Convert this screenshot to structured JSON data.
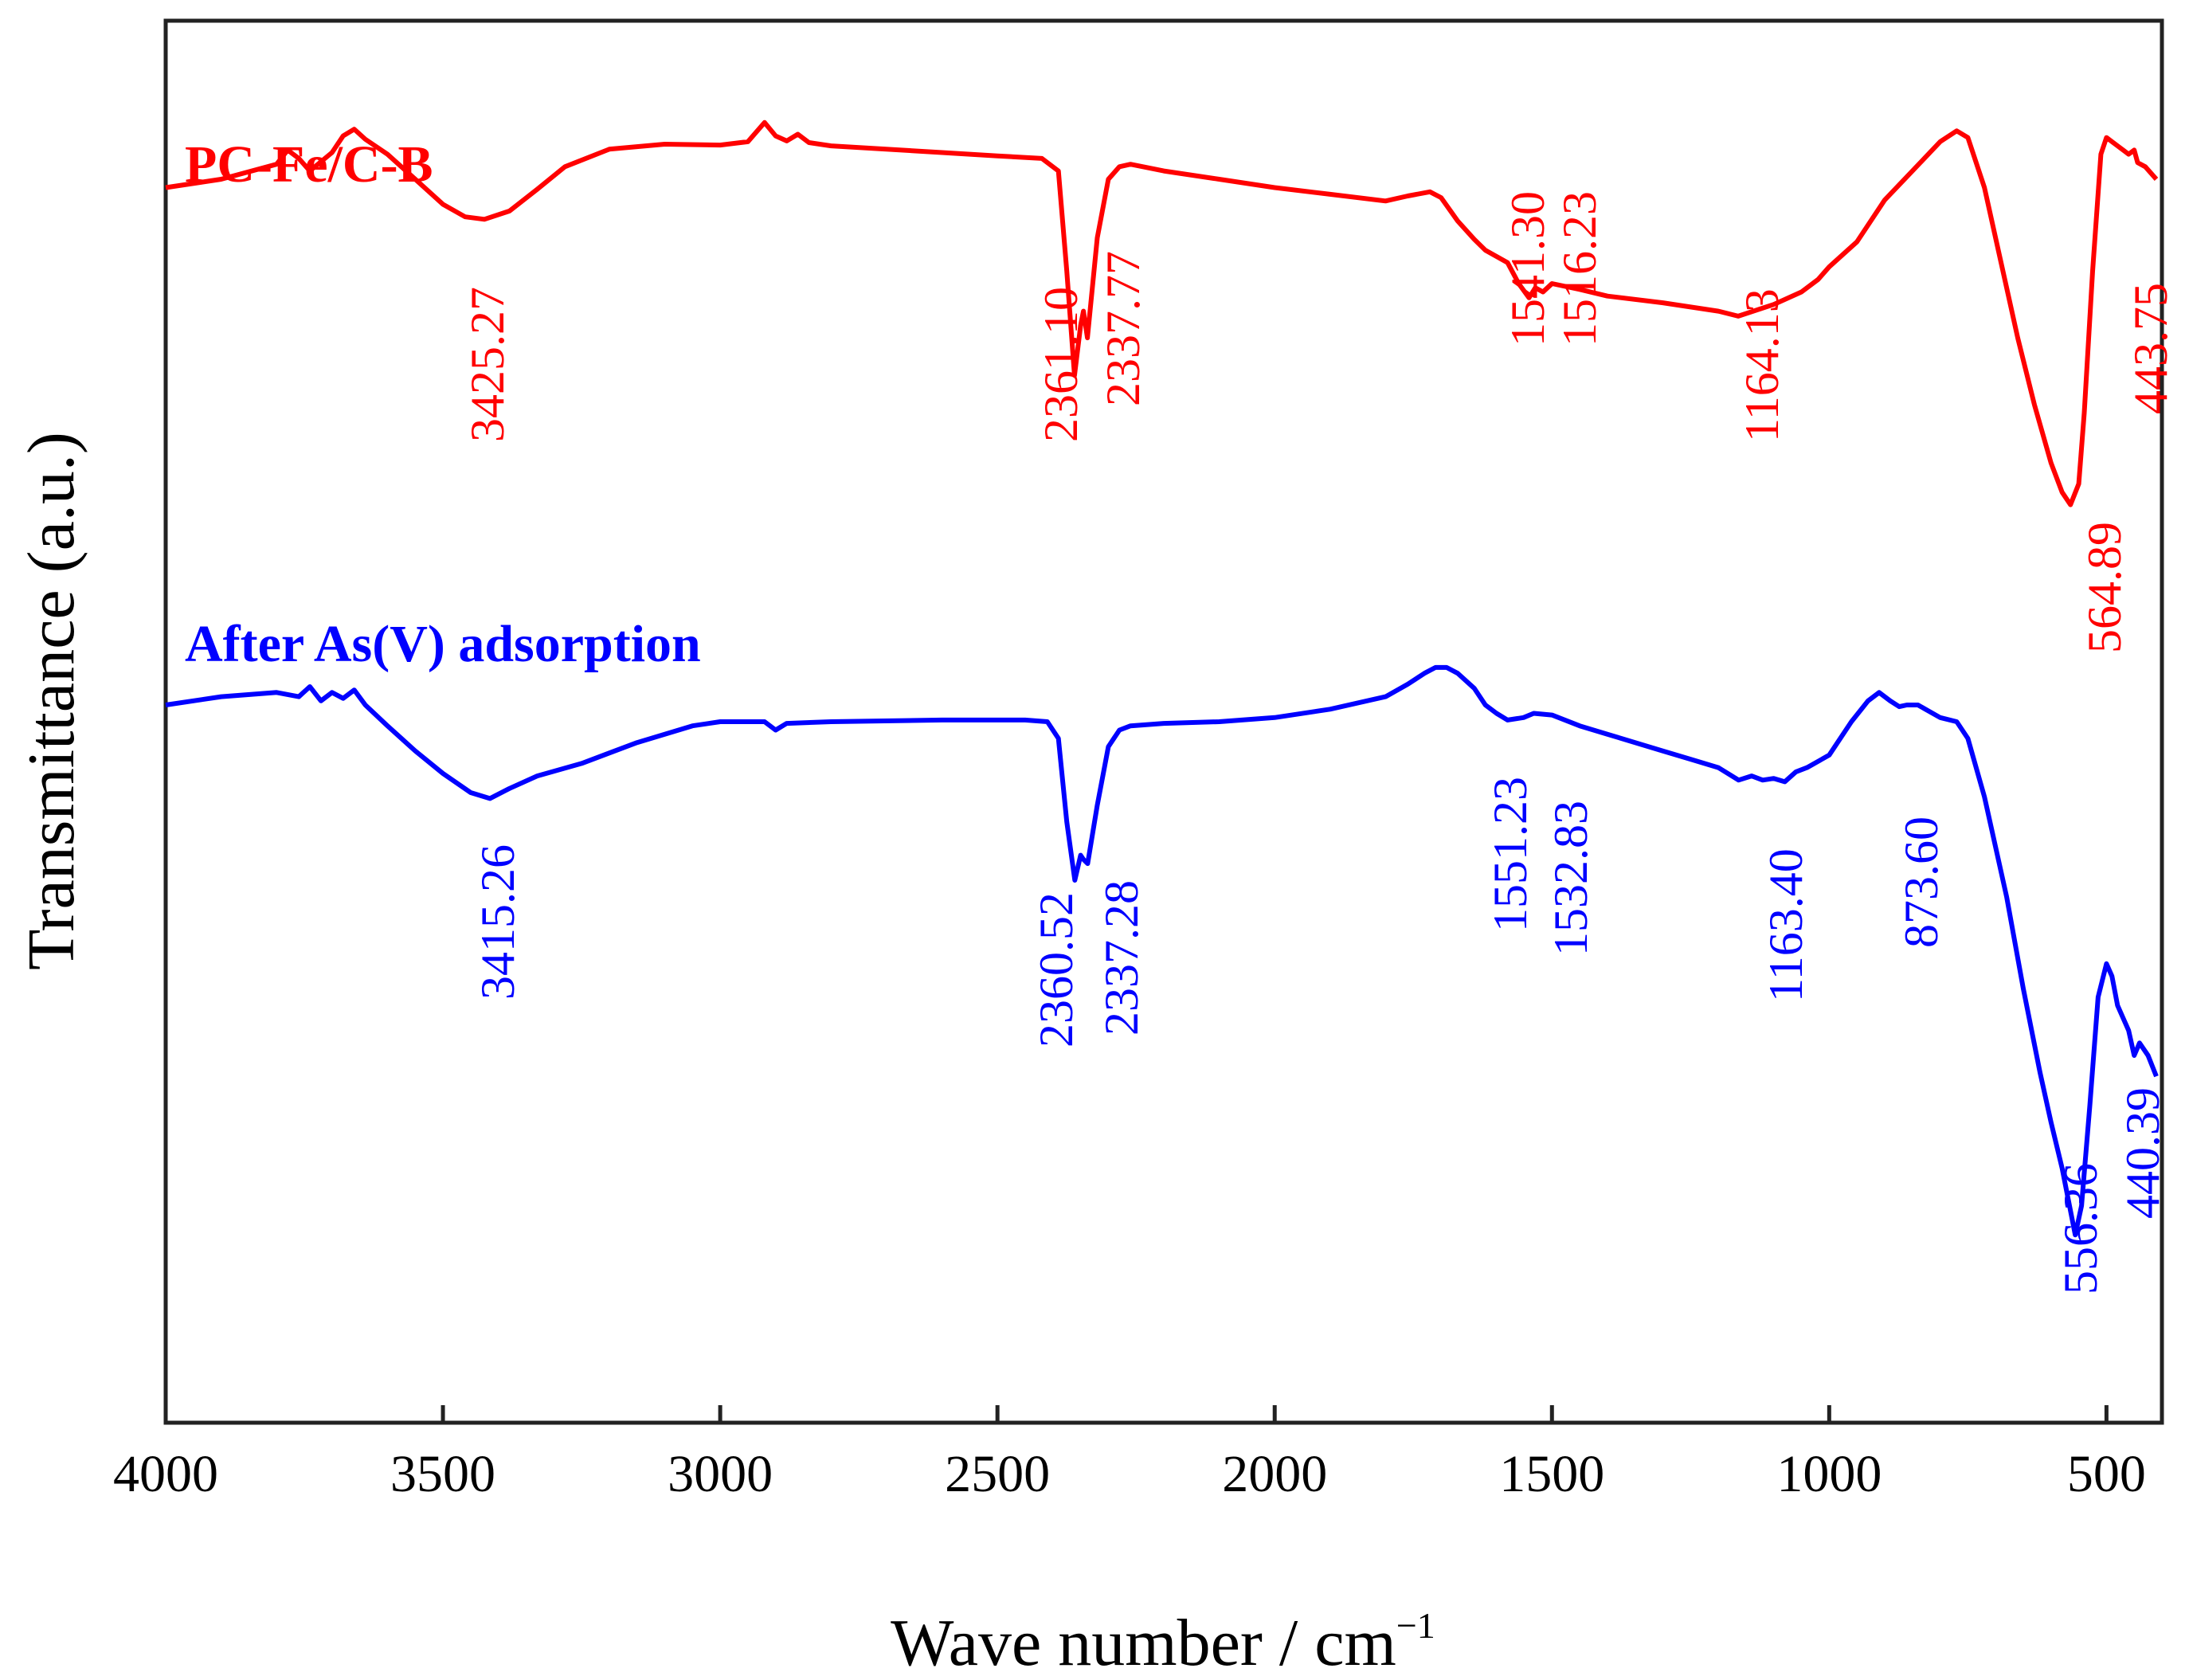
{
  "chart_data": {
    "type": "line",
    "title": "",
    "xlabel": "Wave number  / cm",
    "xlabel_sup": "−1",
    "ylabel": "Transmittance (a.u.)",
    "xlim": [
      4000,
      400
    ],
    "xticks": [
      4000,
      3500,
      3000,
      2500,
      2000,
      1500,
      1000,
      500
    ],
    "y_axis_units": "arbitrary, stacked offsets",
    "grid": false,
    "series": [
      {
        "name": "PC-Fe/C-B",
        "color": "#ff0000",
        "x": [
          4000,
          3900,
          3800,
          3780,
          3760,
          3740,
          3700,
          3680,
          3660,
          3640,
          3600,
          3550,
          3500,
          3460,
          3425.27,
          3380,
          3330,
          3280,
          3200,
          3100,
          3000,
          2950,
          2920,
          2900,
          2880,
          2860,
          2840,
          2800,
          2600,
          2500,
          2420,
          2390,
          2375,
          2361.1,
          2350,
          2345,
          2337.77,
          2320,
          2300,
          2280,
          2260,
          2200,
          2100,
          2000,
          1900,
          1800,
          1760,
          1720,
          1700,
          1670,
          1640,
          1620,
          1580,
          1560,
          1541.3,
          1530,
          1516.23,
          1500,
          1450,
          1400,
          1300,
          1200,
          1164.13,
          1100,
          1050,
          1020,
          1000,
          950,
          900,
          850,
          800,
          770,
          750,
          720,
          690,
          660,
          630,
          600,
          580,
          564.89,
          550,
          540,
          525,
          510,
          500,
          480,
          460,
          450,
          443.75,
          430,
          410
        ],
        "y": [
          5.2,
          5.3,
          5.48,
          5.65,
          5.55,
          5.4,
          5.62,
          5.82,
          5.9,
          5.78,
          5.6,
          5.3,
          5.0,
          4.85,
          4.82,
          4.92,
          5.18,
          5.45,
          5.66,
          5.72,
          5.71,
          5.75,
          5.98,
          5.82,
          5.76,
          5.84,
          5.74,
          5.7,
          5.62,
          5.58,
          5.55,
          5.4,
          4.2,
          2.95,
          3.55,
          3.72,
          3.4,
          4.6,
          5.3,
          5.45,
          5.48,
          5.4,
          5.3,
          5.2,
          5.12,
          5.04,
          5.1,
          5.15,
          5.08,
          4.8,
          4.58,
          4.45,
          4.3,
          4.05,
          3.88,
          4.0,
          3.95,
          4.05,
          3.98,
          3.9,
          3.82,
          3.72,
          3.66,
          3.8,
          3.95,
          4.1,
          4.25,
          4.55,
          5.05,
          5.4,
          5.75,
          5.88,
          5.8,
          5.2,
          4.3,
          3.4,
          2.6,
          1.9,
          1.55,
          1.4,
          1.65,
          2.5,
          4.2,
          5.6,
          5.8,
          5.7,
          5.6,
          5.65,
          5.5,
          5.45,
          5.3
        ]
      },
      {
        "name": "After As(V) adsorption",
        "color": "#0000ff",
        "x": [
          4000,
          3900,
          3800,
          3760,
          3740,
          3720,
          3700,
          3680,
          3660,
          3640,
          3600,
          3550,
          3500,
          3450,
          3415.26,
          3380,
          3330,
          3250,
          3150,
          3050,
          3000,
          2920,
          2900,
          2880,
          2800,
          2600,
          2450,
          2410,
          2390,
          2375,
          2360.52,
          2350,
          2345,
          2337.28,
          2320,
          2300,
          2280,
          2260,
          2200,
          2100,
          2000,
          1900,
          1800,
          1760,
          1730,
          1710,
          1690,
          1670,
          1640,
          1620,
          1600,
          1580,
          1551.23,
          1532.83,
          1500,
          1450,
          1400,
          1350,
          1300,
          1250,
          1200,
          1163.4,
          1140,
          1120,
          1100,
          1080,
          1060,
          1040,
          1000,
          960,
          930,
          910,
          890,
          873.6,
          860,
          840,
          800,
          770,
          750,
          720,
          680,
          650,
          620,
          600,
          580,
          556.36,
          545,
          530,
          515,
          500,
          490,
          480,
          460,
          450,
          440.39,
          425,
          410
        ],
        "y": [
          -1.0,
          -0.9,
          -0.85,
          -0.9,
          -0.78,
          -0.95,
          -0.85,
          -0.92,
          -0.82,
          -1.0,
          -1.25,
          -1.55,
          -1.82,
          -2.05,
          -2.12,
          -2.0,
          -1.85,
          -1.7,
          -1.45,
          -1.25,
          -1.2,
          -1.2,
          -1.3,
          -1.22,
          -1.2,
          -1.18,
          -1.18,
          -1.2,
          -1.4,
          -2.4,
          -3.1,
          -2.8,
          -2.85,
          -2.9,
          -2.2,
          -1.5,
          -1.3,
          -1.25,
          -1.22,
          -1.2,
          -1.15,
          -1.05,
          -0.9,
          -0.75,
          -0.62,
          -0.55,
          -0.55,
          -0.62,
          -0.8,
          -1.0,
          -1.1,
          -1.18,
          -1.15,
          -1.1,
          -1.12,
          -1.25,
          -1.35,
          -1.45,
          -1.55,
          -1.65,
          -1.75,
          -1.9,
          -1.85,
          -1.9,
          -1.88,
          -1.92,
          -1.8,
          -1.75,
          -1.6,
          -1.2,
          -0.95,
          -0.85,
          -0.95,
          -1.02,
          -1.0,
          -1.0,
          -1.15,
          -1.2,
          -1.4,
          -2.1,
          -3.3,
          -4.4,
          -5.4,
          -6.0,
          -6.55,
          -7.35,
          -7.0,
          -5.8,
          -4.5,
          -4.1,
          -4.25,
          -4.6,
          -4.9,
          -5.2,
          -5.05,
          -5.2,
          -5.45
        ]
      }
    ],
    "peak_labels": [
      {
        "series": 0,
        "text": "3425.27"
      },
      {
        "series": 0,
        "text": "2361.10"
      },
      {
        "series": 0,
        "text": "2337.77"
      },
      {
        "series": 0,
        "text": "1541.30"
      },
      {
        "series": 0,
        "text": "1516.23"
      },
      {
        "series": 0,
        "text": "1164.13"
      },
      {
        "series": 0,
        "text": "564.89"
      },
      {
        "series": 0,
        "text": "443.75"
      },
      {
        "series": 1,
        "text": "3415.26"
      },
      {
        "series": 1,
        "text": "2360.52"
      },
      {
        "series": 1,
        "text": "2337.28"
      },
      {
        "series": 1,
        "text": "1551.23"
      },
      {
        "series": 1,
        "text": "1532.83"
      },
      {
        "series": 1,
        "text": "1163.40"
      },
      {
        "series": 1,
        "text": "873.60"
      },
      {
        "series": 1,
        "text": "556.36"
      },
      {
        "series": 1,
        "text": "440.39"
      }
    ]
  }
}
